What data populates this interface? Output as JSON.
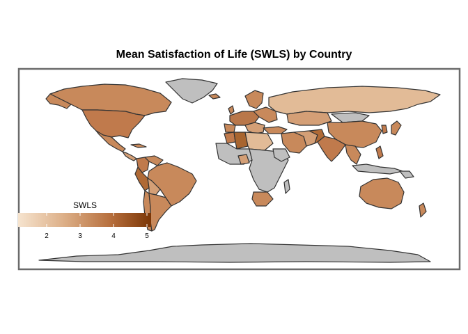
{
  "title": "Mean Satisfaction of Life (SWLS) by Country",
  "legend": {
    "title": "SWLS",
    "ticks": [
      2,
      3,
      4,
      5
    ],
    "range": [
      1.2,
      5.1
    ],
    "color_low": "#f6e4cf",
    "color_high": "#7a3505",
    "missing_color": "#bfbfbf"
  },
  "colors": {
    "border": "#333333",
    "frame": "#6b6b6b",
    "background": "#ffffff"
  }
}
